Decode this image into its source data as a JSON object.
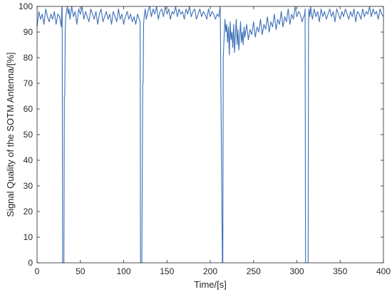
{
  "chart_data": {
    "type": "line",
    "title": "",
    "xlabel": "Time/[s]",
    "ylabel": "Signal Quality of the SOTM Antenna/[%]",
    "xlim": [
      0,
      400
    ],
    "ylim": [
      0,
      100
    ],
    "xticks": [
      0,
      50,
      100,
      150,
      200,
      250,
      300,
      350,
      400
    ],
    "yticks": [
      0,
      10,
      20,
      30,
      40,
      50,
      60,
      70,
      80,
      90,
      100
    ],
    "grid": false,
    "line_color": "#3d6fb6",
    "series": [
      {
        "x": [
          0,
          2,
          4,
          6,
          8,
          10,
          12,
          14,
          16,
          18,
          20,
          22,
          24,
          26,
          28,
          28.5,
          29,
          29.5,
          31,
          31.5,
          32,
          32.5,
          33,
          34,
          35,
          36,
          37,
          38,
          40,
          42,
          44,
          46,
          48,
          50,
          52,
          54,
          56,
          58,
          60,
          62,
          64,
          66,
          68,
          70,
          72,
          74,
          76,
          78,
          80,
          82,
          84,
          86,
          88,
          90,
          92,
          94,
          96,
          98,
          100,
          102,
          104,
          106,
          108,
          110,
          112,
          114,
          116,
          118,
          119,
          119.5,
          121,
          122,
          122.5,
          123,
          124,
          125,
          126,
          128,
          130,
          132,
          134,
          136,
          138,
          140,
          142,
          144,
          146,
          148,
          150,
          152,
          154,
          156,
          158,
          160,
          162,
          164,
          166,
          168,
          170,
          172,
          174,
          176,
          178,
          180,
          182,
          184,
          186,
          188,
          190,
          192,
          194,
          196,
          198,
          200,
          202,
          204,
          206,
          208,
          210,
          211,
          211.5,
          214,
          214.5,
          215,
          216,
          217,
          218,
          219,
          220,
          221,
          222,
          223,
          224,
          225,
          226,
          227,
          228,
          229,
          230,
          231,
          232,
          233,
          234,
          235,
          236,
          237,
          238,
          239,
          240,
          242,
          244,
          246,
          248,
          250,
          252,
          254,
          256,
          258,
          260,
          262,
          264,
          266,
          268,
          270,
          272,
          274,
          276,
          278,
          280,
          282,
          284,
          286,
          288,
          290,
          292,
          294,
          296,
          298,
          300,
          302,
          304,
          306,
          308,
          309,
          309.5,
          310,
          313,
          313.5,
          314,
          315,
          316,
          317,
          318,
          320,
          322,
          324,
          326,
          328,
          330,
          332,
          334,
          336,
          338,
          340,
          342,
          344,
          346,
          348,
          350,
          352,
          354,
          356,
          358,
          360,
          362,
          364,
          366,
          368,
          370,
          372,
          374,
          376,
          378,
          380,
          382,
          384,
          386,
          388,
          390,
          392,
          394,
          396,
          398,
          400
        ],
        "y": [
          92,
          98,
          95,
          97,
          93,
          99,
          96,
          94,
          97,
          95,
          98,
          93,
          97,
          96,
          92,
          99,
          100,
          0,
          0,
          65,
          65,
          90,
          95,
          98,
          100,
          97,
          99,
          95,
          100,
          96,
          98,
          93,
          99,
          97,
          100,
          95,
          98,
          96,
          94,
          99,
          97,
          95,
          98,
          93,
          97,
          99,
          94,
          96,
          98,
          95,
          97,
          93,
          98,
          96,
          94,
          99,
          95,
          97,
          93,
          96,
          98,
          95,
          97,
          94,
          96,
          93,
          97,
          95,
          94,
          0,
          0,
          70,
          70,
          93,
          97,
          99,
          95,
          98,
          100,
          96,
          99,
          97,
          100,
          95,
          98,
          99,
          96,
          100,
          97,
          99,
          95,
          98,
          97,
          100,
          96,
          99,
          97,
          98,
          95,
          99,
          97,
          100,
          96,
          98,
          99,
          95,
          97,
          99,
          96,
          98,
          97,
          95,
          99,
          96,
          98,
          97,
          95,
          97,
          96,
          99,
          100,
          0,
          0,
          80,
          88,
          95,
          90,
          93,
          86,
          92,
          81,
          94,
          87,
          90,
          84,
          93,
          82,
          89,
          95,
          85,
          91,
          83,
          88,
          94,
          86,
          90,
          85,
          92,
          88,
          93,
          87,
          91,
          89,
          94,
          88,
          92,
          90,
          95,
          89,
          93,
          91,
          96,
          90,
          94,
          92,
          97,
          91,
          95,
          93,
          98,
          92,
          96,
          94,
          99,
          93,
          97,
          95,
          100,
          96,
          98,
          97,
          94,
          96,
          97,
          99,
          0,
          0,
          95,
          99,
          96,
          100,
          97,
          95,
          99,
          96,
          98,
          94,
          99,
          96,
          98,
          95,
          97,
          99,
          96,
          98,
          94,
          99,
          97,
          95,
          98,
          96,
          99,
          97,
          95,
          98,
          96,
          99,
          94,
          98,
          97,
          95,
          99,
          96,
          98,
          97,
          100,
          96,
          99,
          97,
          98,
          95,
          99,
          97,
          96
        ]
      }
    ]
  }
}
